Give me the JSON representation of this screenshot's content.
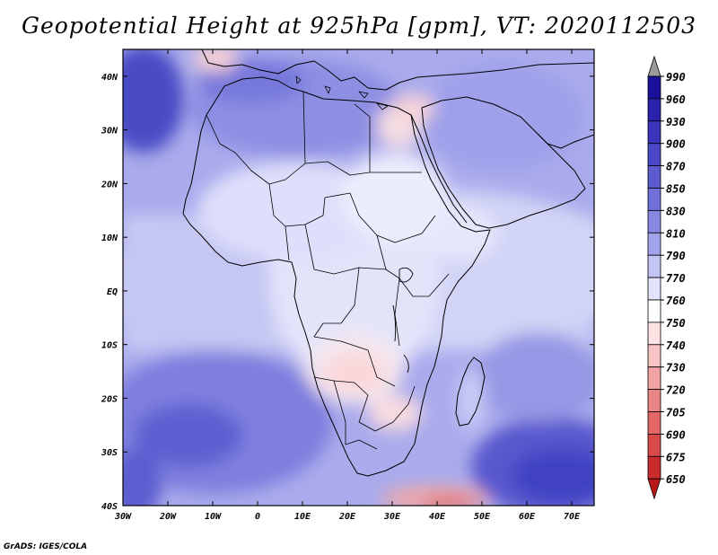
{
  "title": "Geopotential Height at 925hPa [gpm], VT: 2020112503",
  "credit": "GrADS: IGES/COLA",
  "map": {
    "lon_labels": [
      "30W",
      "20W",
      "10W",
      "0",
      "10E",
      "20E",
      "30E",
      "40E",
      "50E",
      "60E",
      "70E"
    ],
    "lat_labels": [
      "40N",
      "30N",
      "20N",
      "10N",
      "EQ",
      "10S",
      "20S",
      "30S",
      "40S"
    ]
  },
  "colorbar": {
    "levels": [
      "990",
      "960",
      "930",
      "900",
      "870",
      "850",
      "830",
      "810",
      "790",
      "770",
      "760",
      "750",
      "740",
      "730",
      "720",
      "705",
      "690",
      "675",
      "650"
    ],
    "colors": [
      "#9b9b9b",
      "#1a0f9a",
      "#2a22ae",
      "#3b35bd",
      "#4a48c6",
      "#5c5cd0",
      "#6f70d9",
      "#8788e2",
      "#a2a4eb",
      "#c2c4f3",
      "#e2e3fa",
      "#ffffff",
      "#fde3e3",
      "#f8c4c4",
      "#f2a3a3",
      "#ea8585",
      "#e36767",
      "#d84949",
      "#c92c2c",
      "#b71818"
    ]
  }
}
